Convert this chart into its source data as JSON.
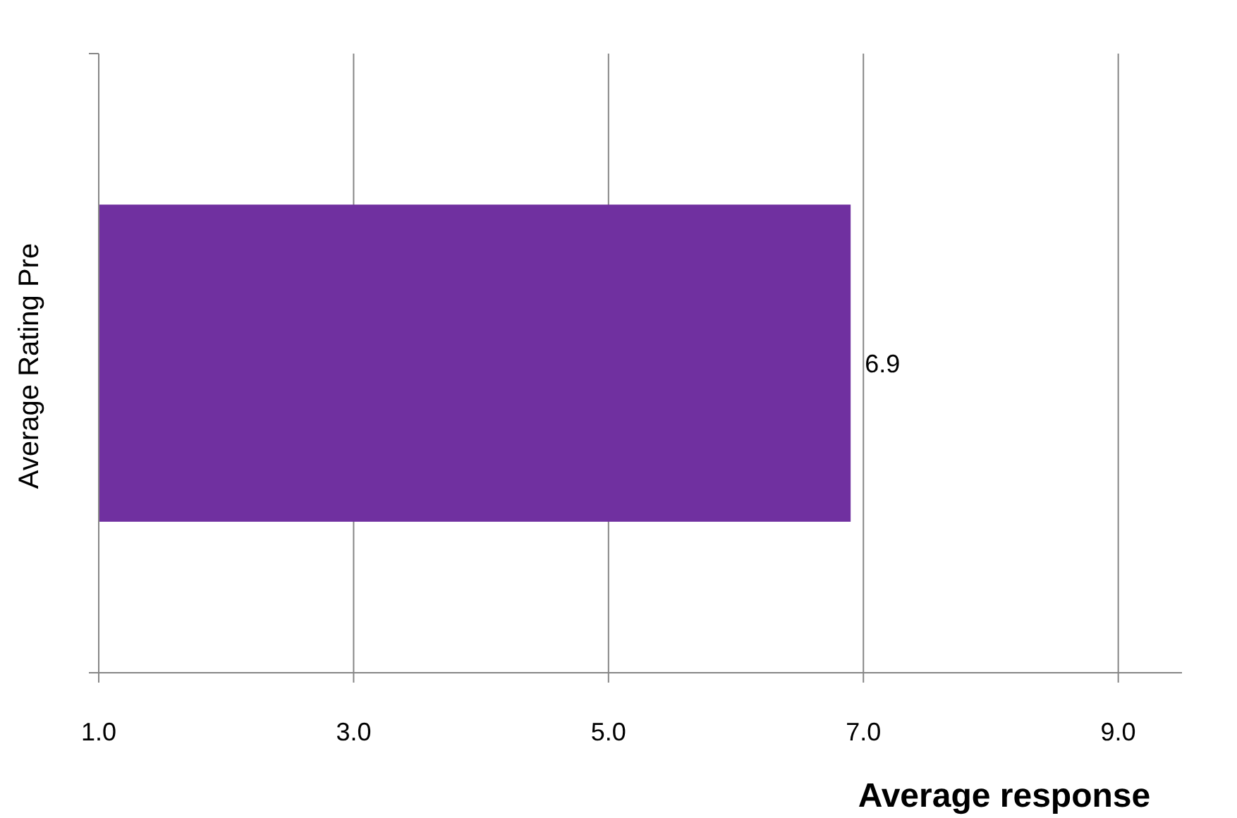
{
  "chart_data": {
    "type": "bar",
    "orientation": "horizontal",
    "ylabel": "Average Rating Pre",
    "xlabel": "Average response",
    "categories": [
      null
    ],
    "series": [
      {
        "color": "#7030a0",
        "values": [
          6.9
        ]
      }
    ],
    "xlim": [
      1,
      9.5
    ],
    "xticks": [
      {
        "value": 1,
        "label": "1.0"
      },
      {
        "value": 3,
        "label": "3.0"
      },
      {
        "value": 5,
        "label": "5.0"
      },
      {
        "value": 7,
        "label": "7.0"
      },
      {
        "value": 9,
        "label": "9.0"
      }
    ],
    "grid": "x",
    "data_labels": true
  }
}
